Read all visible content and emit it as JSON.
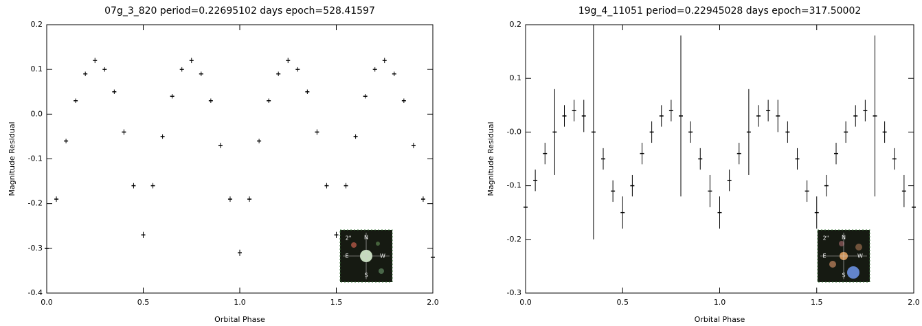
{
  "chart_data": [
    {
      "type": "scatter",
      "title": "07g_3_820  period=0.22695102 days  epoch=528.41597",
      "x_label": "Orbital Phase",
      "y_label": "Magnitude Residual",
      "color": "#000000",
      "x": [
        0,
        0.05,
        0.1,
        0.15,
        0.2,
        0.25,
        0.3,
        0.35,
        0.4,
        0.45,
        0.5,
        0.55,
        0.6,
        0.65,
        0.7,
        0.75,
        0.8,
        0.85,
        0.9,
        0.95,
        1,
        1.05,
        1.1,
        1.15,
        1.2,
        1.25,
        1.3,
        1.35,
        1.4,
        1.45,
        1.5,
        1.55,
        1.6,
        1.65,
        1.7,
        1.75,
        1.8,
        1.85,
        1.9,
        1.95,
        2
      ],
      "values": [
        -0.3,
        -0.19,
        -0.06,
        0.03,
        0.09,
        0.12,
        0.1,
        0.05,
        -0.04,
        -0.16,
        -0.27,
        -0.16,
        -0.05,
        0.04,
        0.1,
        0.12,
        0.09,
        0.03,
        -0.07,
        -0.19,
        -0.31,
        -0.19,
        -0.06,
        0.03,
        0.09,
        0.12,
        0.1,
        0.05,
        -0.04,
        -0.16,
        -0.27,
        -0.16,
        -0.05,
        0.04,
        0.1,
        0.12,
        0.09,
        0.03,
        -0.07,
        -0.19,
        -0.32
      ],
      "errors": [
        0.006,
        0.006,
        0.005,
        0.005,
        0.005,
        0.006,
        0.005,
        0.005,
        0.006,
        0.006,
        0.007,
        0.006,
        0.005,
        0.005,
        0.005,
        0.006,
        0.005,
        0.005,
        0.006,
        0.006,
        0.007,
        0.006,
        0.005,
        0.005,
        0.005,
        0.006,
        0.005,
        0.005,
        0.006,
        0.006,
        0.007,
        0.006,
        0.005,
        0.005,
        0.005,
        0.006,
        0.005,
        0.005,
        0.006,
        0.006,
        0.007
      ],
      "xlim": [
        0,
        2
      ],
      "ylim": [
        -0.4,
        0.2
      ],
      "xticks": [
        {
          "value": 0,
          "label": "0.0"
        },
        0.5,
        {
          "value": 1,
          "label": "1.0"
        },
        1.5,
        {
          "value": 2,
          "label": "2.0"
        }
      ],
      "yticks": [
        -0.4,
        -0.3,
        -0.2,
        -0.1,
        {
          "value": 0,
          "label": "0.0"
        },
        0.1,
        0.2
      ],
      "inset_labels": {
        "scale": "2\"",
        "north": "N",
        "east": "E",
        "west": "W",
        "south": "S"
      }
    },
    {
      "type": "scatter",
      "title": "19g_4_11051  period=0.22945028 days  epoch=317.50002",
      "x_label": "Orbital Phase",
      "y_label": "Magnitude Residual",
      "color": "#000000",
      "x": [
        0,
        0.05,
        0.1,
        0.15,
        0.2,
        0.25,
        0.3,
        0.35,
        0.4,
        0.45,
        0.5,
        0.55,
        0.6,
        0.65,
        0.7,
        0.75,
        0.8,
        0.85,
        0.9,
        0.95,
        1,
        1.05,
        1.1,
        1.15,
        1.2,
        1.25,
        1.3,
        1.35,
        1.4,
        1.45,
        1.5,
        1.55,
        1.6,
        1.65,
        1.7,
        1.75,
        1.8,
        1.85,
        1.9,
        1.95,
        2
      ],
      "values": [
        -0.14,
        -0.09,
        -0.04,
        0,
        0.03,
        0.04,
        0.03,
        0,
        -0.05,
        -0.11,
        -0.15,
        -0.1,
        -0.04,
        0,
        0.03,
        0.04,
        0.03,
        0,
        -0.05,
        -0.11,
        -0.15,
        -0.09,
        -0.04,
        0,
        0.03,
        0.04,
        0.03,
        0,
        -0.05,
        -0.11,
        -0.15,
        -0.1,
        -0.04,
        0,
        0.03,
        0.04,
        0.03,
        0,
        -0.05,
        -0.11,
        -0.14
      ],
      "errors": [
        0.03,
        0.02,
        0.02,
        0.08,
        0.02,
        0.02,
        0.03,
        0.2,
        0.02,
        0.02,
        0.03,
        0.02,
        0.02,
        0.02,
        0.02,
        0.02,
        0.15,
        0.02,
        0.02,
        0.03,
        0.03,
        0.02,
        0.02,
        0.08,
        0.02,
        0.02,
        0.03,
        0.02,
        0.02,
        0.02,
        0.03,
        0.02,
        0.02,
        0.02,
        0.02,
        0.02,
        0.15,
        0.02,
        0.02,
        0.03,
        0.03
      ],
      "xlim": [
        0,
        2
      ],
      "ylim": [
        -0.3,
        0.2
      ],
      "xticks": [
        {
          "value": 0,
          "label": "0.0"
        },
        0.5,
        {
          "value": 1,
          "label": "1.0"
        },
        1.5,
        {
          "value": 2,
          "label": "2.0"
        }
      ],
      "yticks": [
        -0.3,
        -0.2,
        -0.1,
        {
          "value": 0,
          "label": "-0.0"
        },
        0.1,
        0.2
      ],
      "inset_labels": {
        "scale": "2\"",
        "north": "N",
        "east": "E",
        "west": "W",
        "south": "S"
      }
    }
  ]
}
